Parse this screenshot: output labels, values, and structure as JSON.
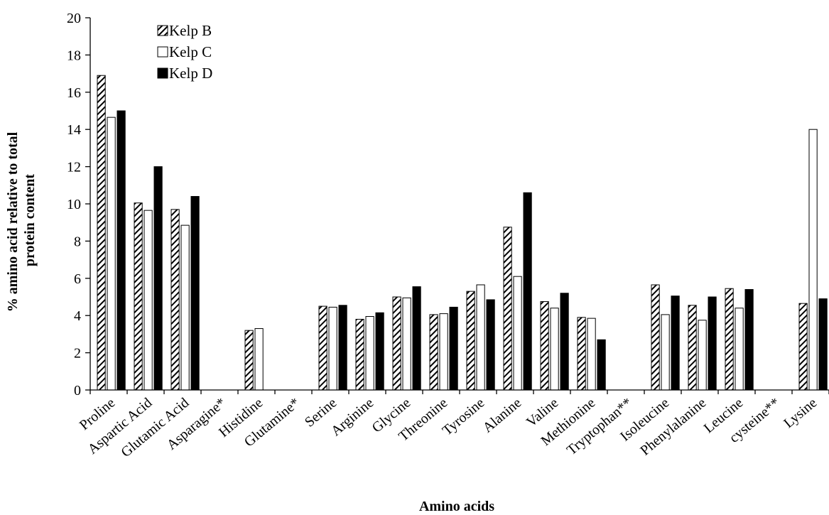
{
  "chart_data": {
    "type": "bar",
    "xlabel": "Amino acids",
    "ylabel_lines": [
      "% amino acid relative to total",
      "protein content"
    ],
    "ylim": [
      0,
      20
    ],
    "yticks": [
      "0",
      "2",
      "4",
      "6",
      "8",
      "10",
      "12",
      "14",
      "16",
      "18",
      "20"
    ],
    "grid": false,
    "legend_position": "top-left",
    "categories": [
      "Proline",
      "Aspartic Acid",
      "Glutamic Acid",
      "Asparagine*",
      "Histidine",
      "Glutamine*",
      "Serine",
      "Arginine",
      "Glycine",
      "Threonine",
      "Tyrosine",
      "Alanine",
      "Valine",
      "Methionine",
      "Tryptophan**",
      "Isoleucine",
      "Phenylalanine",
      "Leucine",
      "cysteine**",
      "Lysine"
    ],
    "series": [
      {
        "name": "Kelp B",
        "pattern": "hatched",
        "values": [
          16.9,
          10.05,
          9.7,
          0,
          3.2,
          0,
          4.5,
          3.8,
          5.0,
          4.05,
          5.3,
          8.75,
          4.75,
          3.9,
          0,
          5.65,
          4.55,
          5.45,
          0,
          4.65
        ]
      },
      {
        "name": "Kelp C",
        "pattern": "white",
        "values": [
          14.65,
          9.65,
          8.85,
          0,
          3.3,
          0,
          4.45,
          3.95,
          4.95,
          4.1,
          5.65,
          6.1,
          4.4,
          3.85,
          0,
          4.05,
          3.75,
          4.4,
          0,
          14.0
        ]
      },
      {
        "name": "Kelp D",
        "pattern": "black",
        "values": [
          15.0,
          12.0,
          10.4,
          0,
          0,
          0,
          4.55,
          4.15,
          5.55,
          4.45,
          4.85,
          10.6,
          5.2,
          2.7,
          0,
          5.05,
          5.0,
          5.4,
          0,
          4.9
        ]
      }
    ],
    "colors": {
      "bar_fill_dark": "#000000",
      "bar_fill_light": "#ffffff",
      "axis": "#000000"
    }
  }
}
